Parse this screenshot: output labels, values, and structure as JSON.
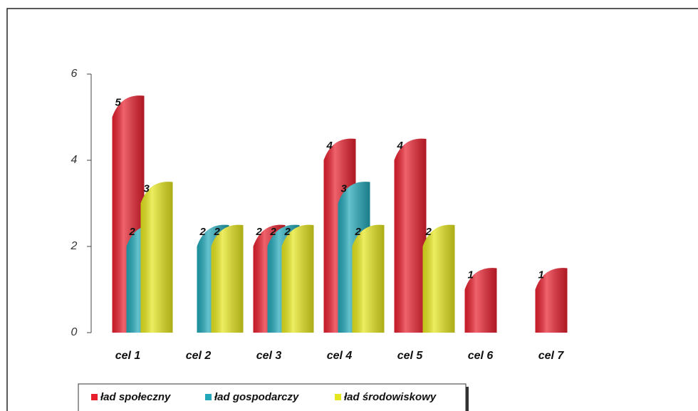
{
  "chart_data": {
    "type": "bar",
    "categories": [
      "cel 1",
      "cel 2",
      "cel 3",
      "cel 4",
      "cel 5",
      "cel 6",
      "cel 7"
    ],
    "series": [
      {
        "name": "ład społeczny",
        "color": "#e8202e",
        "values": [
          5,
          null,
          2,
          4,
          4,
          1,
          1
        ]
      },
      {
        "name": "ład gospodarczy",
        "color": "#22a8b8",
        "values": [
          2,
          2,
          2,
          3,
          null,
          null,
          null
        ]
      },
      {
        "name": "ład środowiskowy",
        "color": "#e6e61e",
        "values": [
          3,
          2,
          2,
          2,
          2,
          null,
          null
        ]
      }
    ],
    "ylim": [
      0,
      6
    ],
    "yticks": [
      0,
      2,
      4,
      6
    ],
    "grid": false,
    "legend": "bottom"
  }
}
